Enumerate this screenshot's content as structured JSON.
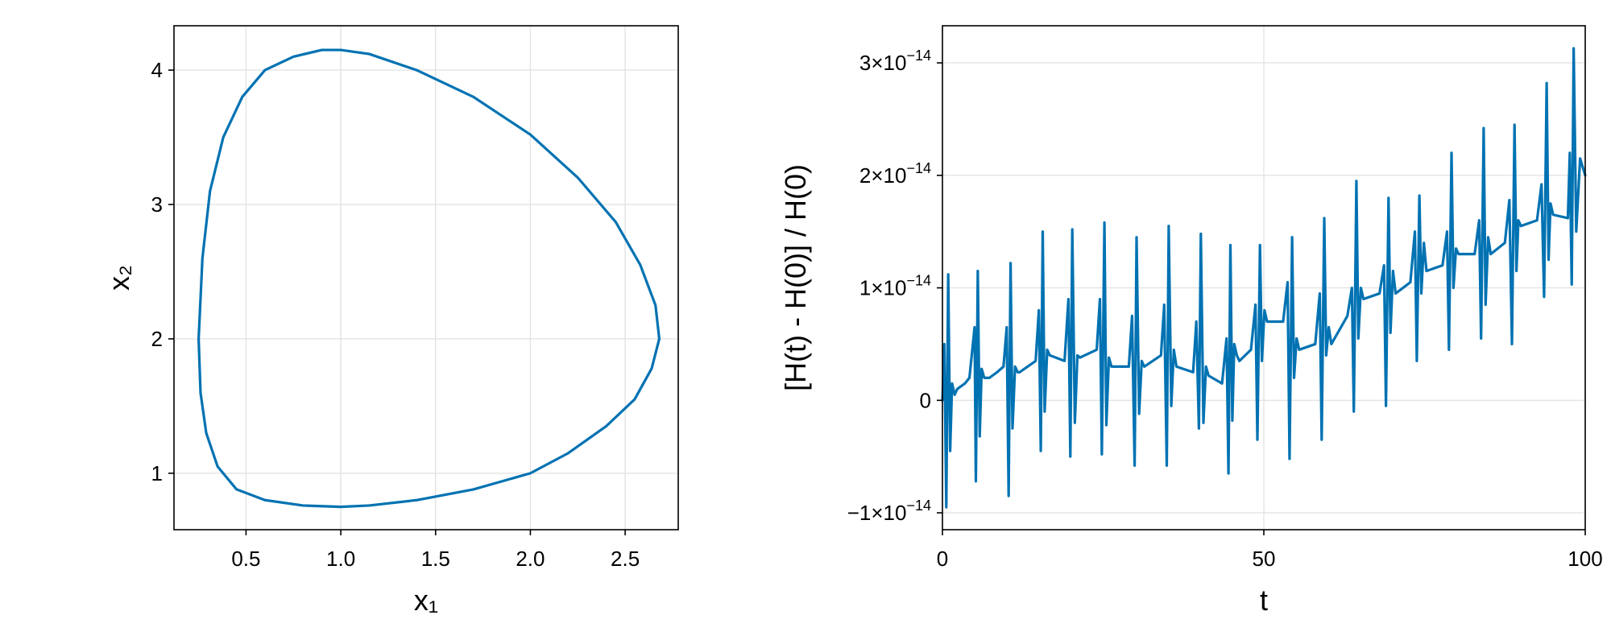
{
  "colors": {
    "series": "#0072b2",
    "grid": "#e3e3e3",
    "frame": "#000000",
    "background": "#ffffff"
  },
  "chart_data": [
    {
      "type": "line",
      "xlabel": "x₁",
      "ylabel": "x₂",
      "xlim": [
        0.12,
        2.78
      ],
      "ylim": [
        0.58,
        4.33
      ],
      "x_ticks": [
        0.5,
        1.0,
        1.5,
        2.0,
        2.5
      ],
      "x_tick_labels": [
        "0.5",
        "1.0",
        "1.5",
        "2.0",
        "2.5"
      ],
      "y_ticks": [
        1,
        2,
        3,
        4
      ],
      "y_tick_labels": [
        "1",
        "2",
        "3",
        "4"
      ],
      "grid": true,
      "series": [
        {
          "x": [
            0.25,
            0.27,
            0.31,
            0.38,
            0.48,
            0.6,
            0.75,
            0.9,
            1.0,
            1.15,
            1.4,
            1.7,
            2.0,
            2.25,
            2.45,
            2.58,
            2.66,
            2.68,
            2.64,
            2.55,
            2.4,
            2.2,
            2.0,
            1.7,
            1.4,
            1.15,
            1.0,
            0.8,
            0.6,
            0.45,
            0.35,
            0.29,
            0.26,
            0.25
          ],
          "y": [
            2.0,
            2.6,
            3.1,
            3.5,
            3.8,
            4.0,
            4.1,
            4.15,
            4.15,
            4.12,
            4.0,
            3.8,
            3.52,
            3.2,
            2.87,
            2.55,
            2.25,
            2.0,
            1.78,
            1.55,
            1.35,
            1.15,
            1.0,
            0.88,
            0.8,
            0.76,
            0.75,
            0.76,
            0.8,
            0.88,
            1.05,
            1.3,
            1.6,
            2.0
          ]
        }
      ]
    },
    {
      "type": "line",
      "xlabel": "t",
      "ylabel": "[H(t) - H(0)] / H(0)",
      "xlim": [
        0,
        100
      ],
      "ylim": [
        -1.15e-14,
        3.33e-14
      ],
      "x_ticks": [
        0,
        50,
        100
      ],
      "x_tick_labels": [
        "0",
        "50",
        "100"
      ],
      "y_ticks": [
        -1e-14,
        0,
        1e-14,
        2e-14,
        3e-14
      ],
      "y_tick_labels": [
        "−1×10",
        "0",
        "1×10",
        "2×10",
        "3×10"
      ],
      "y_tick_exponents": [
        "−14",
        "",
        "−14",
        "−14",
        "−14"
      ],
      "grid": true,
      "series": [
        {
          "x": [
            0,
            0.3,
            0.6,
            0.9,
            1.2,
            1.5,
            1.9,
            2.3,
            3.5,
            4.2,
            5.0,
            5.2,
            5.5,
            5.8,
            6.1,
            6.5,
            6.9,
            7.3,
            8.5,
            9.5,
            10.0,
            10.3,
            10.6,
            10.9,
            11.3,
            11.7,
            12.0,
            14.5,
            15.0,
            15.3,
            15.6,
            15.9,
            16.3,
            16.7,
            19.0,
            19.6,
            19.9,
            20.2,
            20.6,
            21.0,
            21.4,
            24.0,
            24.5,
            24.8,
            25.2,
            25.5,
            25.9,
            26.3,
            29.0,
            29.5,
            29.9,
            30.2,
            30.6,
            31.0,
            31.4,
            34.0,
            34.5,
            34.9,
            35.2,
            35.6,
            36.0,
            36.4,
            39.0,
            39.5,
            39.9,
            40.2,
            40.6,
            41.0,
            41.4,
            43.5,
            44.2,
            44.5,
            44.8,
            45.1,
            45.4,
            45.8,
            46.2,
            48.0,
            48.7,
            49.0,
            49.4,
            49.7,
            50.1,
            50.5,
            53.0,
            53.7,
            54.0,
            54.4,
            54.7,
            55.1,
            55.5,
            58.0,
            58.7,
            59.0,
            59.4,
            59.7,
            60.1,
            60.5,
            63.0,
            63.7,
            64.0,
            64.4,
            64.7,
            65.1,
            65.5,
            68.0,
            68.7,
            69.0,
            69.4,
            69.7,
            70.1,
            70.5,
            72.8,
            73.5,
            73.8,
            74.2,
            74.5,
            74.9,
            75.3,
            77.8,
            78.5,
            78.8,
            79.2,
            79.5,
            79.9,
            80.3,
            82.8,
            83.5,
            83.8,
            84.2,
            84.5,
            84.9,
            85.3,
            87.5,
            88.2,
            88.6,
            89.0,
            89.3,
            89.6,
            90.0,
            92.5,
            93.2,
            93.6,
            94.0,
            94.3,
            94.6,
            95.0,
            97.3,
            97.6,
            97.9,
            98.2,
            98.6,
            99.2,
            100.0
          ],
          "y": [
            0,
            5e-15,
            -9.5e-15,
            1.12e-14,
            -4.5e-15,
            1.5e-15,
            5e-16,
            1e-15,
            1.5e-15,
            2e-15,
            6.5e-15,
            -7.2e-15,
            1.15e-14,
            -3.2e-15,
            2.8e-15,
            2e-15,
            2e-15,
            2e-15,
            2.5e-15,
            3e-15,
            6.5e-15,
            -8.5e-15,
            1.22e-14,
            -2.5e-15,
            3e-15,
            2.5e-15,
            2.5e-15,
            3.5e-15,
            8e-15,
            -4.5e-15,
            1.5e-14,
            -1e-15,
            4.5e-15,
            4e-15,
            3.5e-15,
            9e-15,
            -5e-15,
            1.52e-14,
            -2e-15,
            4e-15,
            3.8e-15,
            4.5e-15,
            9e-15,
            -4.8e-15,
            1.58e-14,
            -2.2e-15,
            3.8e-15,
            3e-15,
            3e-15,
            7.5e-15,
            -5.8e-15,
            1.45e-14,
            -1.2e-15,
            3.5e-15,
            3e-15,
            4e-15,
            8.5e-15,
            -5.8e-15,
            1.55e-14,
            -5e-16,
            4.5e-15,
            3e-15,
            2.5e-15,
            7e-15,
            -2.5e-15,
            1.48e-14,
            -2e-15,
            3e-15,
            2.2e-15,
            1.5e-15,
            5.5e-15,
            -6.5e-15,
            1.38e-14,
            -1.8e-15,
            5e-15,
            4e-15,
            3.5e-15,
            4.5e-15,
            8.5e-15,
            -3.5e-15,
            1.38e-14,
            3.5e-15,
            8e-15,
            7e-15,
            7e-15,
            1.05e-14,
            -5.2e-15,
            1.45e-14,
            2e-15,
            5.5e-15,
            4.5e-15,
            5e-15,
            9.5e-15,
            -3.5e-15,
            1.62e-14,
            4e-15,
            6.5e-15,
            5e-15,
            7.5e-15,
            1e-14,
            -1e-15,
            1.95e-14,
            5.5e-15,
            1e-14,
            9e-15,
            9.5e-15,
            1.2e-14,
            -5e-16,
            1.8e-14,
            6e-15,
            1.15e-14,
            9.5e-15,
            1.05e-14,
            1.5e-14,
            3.5e-15,
            1.82e-14,
            9.5e-15,
            1.4e-14,
            1.15e-14,
            1.2e-14,
            1.5e-14,
            4.5e-15,
            2.2e-14,
            1e-14,
            1.35e-14,
            1.3e-14,
            1.3e-14,
            1.6e-14,
            5.5e-15,
            2.42e-14,
            8.5e-15,
            1.45e-14,
            1.3e-14,
            1.4e-14,
            1.78e-14,
            5e-15,
            2.45e-14,
            1.15e-14,
            1.6e-14,
            1.55e-14,
            1.6e-14,
            1.92e-14,
            9.2e-15,
            2.82e-14,
            1.25e-14,
            1.75e-14,
            1.65e-14,
            1.62e-14,
            2.2e-14,
            1.03e-14,
            3.13e-14,
            1.5e-14,
            2.15e-14,
            2e-14
          ]
        }
      ]
    }
  ]
}
